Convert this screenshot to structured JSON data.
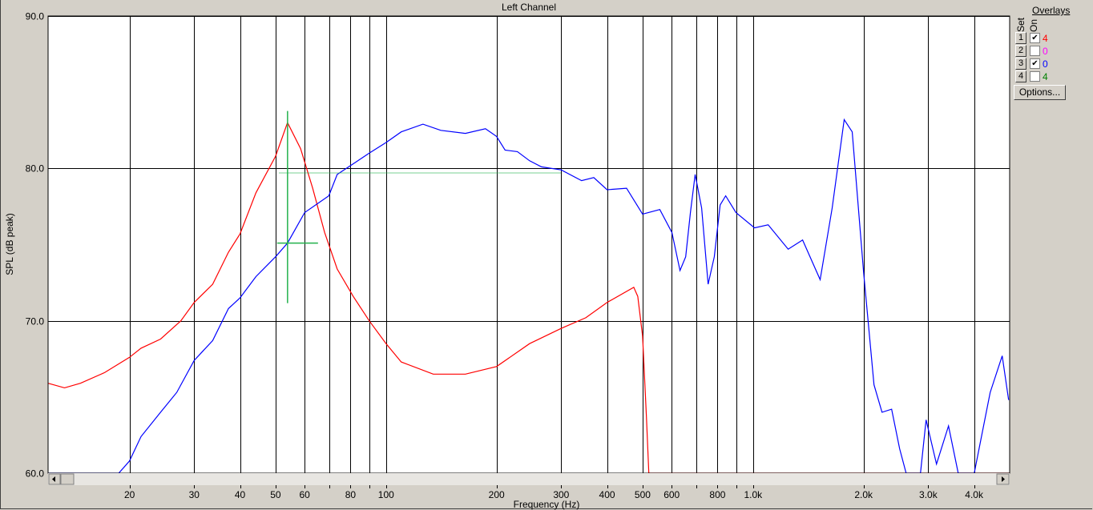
{
  "chart_data": {
    "type": "line",
    "title": "Left Channel",
    "xlabel": "Frequency (Hz)",
    "ylabel": "SPL (dB peak)",
    "xscale": "log",
    "xlim": [
      12,
      5000
    ],
    "ylim": [
      60,
      90
    ],
    "grid": true,
    "yticks": [
      {
        "v": 90,
        "label": "90.0"
      },
      {
        "v": 80,
        "label": "80.0"
      },
      {
        "v": 70,
        "label": "70.0"
      },
      {
        "v": 60,
        "label": "60.0"
      }
    ],
    "xgrid": [
      20,
      30,
      40,
      50,
      60,
      70,
      80,
      90,
      100,
      200,
      300,
      400,
      500,
      600,
      700,
      800,
      900,
      1000,
      2000,
      3000,
      4000
    ],
    "xticks": [
      {
        "v": 20,
        "label": "20"
      },
      {
        "v": 30,
        "label": "30"
      },
      {
        "v": 40,
        "label": "40"
      },
      {
        "v": 50,
        "label": "50"
      },
      {
        "v": 60,
        "label": "60"
      },
      {
        "v": 80,
        "label": "80"
      },
      {
        "v": 100,
        "label": "100"
      },
      {
        "v": 200,
        "label": "200"
      },
      {
        "v": 300,
        "label": "300"
      },
      {
        "v": 400,
        "label": "400"
      },
      {
        "v": 500,
        "label": "500"
      },
      {
        "v": 600,
        "label": "600"
      },
      {
        "v": 800,
        "label": "800"
      },
      {
        "v": 1000,
        "label": "1.0k"
      },
      {
        "v": 2000,
        "label": "2.0k"
      },
      {
        "v": 3000,
        "label": "3.0k"
      },
      {
        "v": 4000,
        "label": "4.0k"
      }
    ],
    "cursor": {
      "freq": 53.9,
      "spl": 75.1,
      "color": "#22b14c",
      "reference_spl": 79.7
    },
    "series": [
      {
        "color": "#ff0000",
        "x": [
          12,
          13.3,
          14.7,
          17.1,
          20,
          21.5,
          24.3,
          27.6,
          30,
          33.7,
          37.2,
          40,
          44.2,
          50,
          53.9,
          58.5,
          63.1,
          68,
          73.6,
          81.4,
          90,
          100,
          110,
          134.5,
          164.5,
          200,
          246,
          300,
          350,
          400,
          473,
          485,
          500,
          512,
          520,
          5000
        ],
        "y": [
          65.9,
          65.6,
          65.9,
          66.6,
          67.6,
          68.2,
          68.8,
          70.0,
          71.2,
          72.4,
          74.5,
          75.7,
          78.4,
          80.8,
          83.0,
          81.3,
          78.7,
          75.8,
          73.4,
          71.6,
          70.0,
          68.5,
          67.3,
          66.5,
          66.5,
          67.0,
          68.5,
          69.5,
          70.2,
          71.2,
          72.2,
          71.6,
          69.0,
          63.7,
          60,
          60
        ]
      },
      {
        "color": "#0000ff",
        "x": [
          12,
          18.7,
          20,
          21.5,
          24.3,
          26.9,
          30,
          33.7,
          37.2,
          40,
          44.2,
          50,
          53.9,
          60,
          69.8,
          73.6,
          81.4,
          90,
          100,
          110,
          126,
          141,
          164.5,
          186.5,
          200,
          211,
          228,
          246,
          265,
          300,
          341,
          368,
          400,
          452,
          500,
          557,
          601,
          632,
          655,
          675,
          695,
          724,
          754,
          784,
          813,
          842,
          898,
          1009,
          1099,
          1246,
          1364,
          1523,
          1642,
          1771,
          1862,
          2000,
          2135,
          2245,
          2385,
          2507,
          2611,
          2858,
          2960,
          3160,
          3407,
          3620,
          4003,
          4426,
          4772,
          4967
        ],
        "y": [
          60,
          60,
          60.8,
          62.4,
          64.0,
          65.3,
          67.4,
          68.7,
          70.8,
          71.5,
          72.9,
          74.2,
          75.1,
          77.1,
          78.2,
          79.6,
          80.3,
          81.0,
          81.7,
          82.4,
          82.9,
          82.5,
          82.3,
          82.6,
          82.1,
          81.2,
          81.1,
          80.5,
          80.1,
          79.9,
          79.2,
          79.4,
          78.6,
          78.7,
          77.0,
          77.3,
          75.8,
          73.3,
          74.2,
          77.1,
          79.6,
          77.4,
          72.4,
          74.2,
          77.6,
          78.2,
          77.1,
          76.1,
          76.3,
          74.7,
          75.3,
          72.7,
          77.4,
          83.2,
          82.4,
          73.2,
          65.8,
          64.0,
          64.2,
          61.6,
          60,
          60,
          63.5,
          60.6,
          63.1,
          60,
          60,
          65.3,
          67.7,
          64.8
        ]
      }
    ]
  },
  "overlays": {
    "title": "Overlays",
    "set_header": "Set",
    "on_header": "On",
    "rows": [
      {
        "set": "1",
        "on": true,
        "count": "4",
        "color": "#ff0000"
      },
      {
        "set": "2",
        "on": false,
        "count": "0",
        "color": "#ff00ff"
      },
      {
        "set": "3",
        "on": true,
        "count": "0",
        "color": "#0000ff"
      },
      {
        "set": "4",
        "on": false,
        "count": "4",
        "color": "#008000"
      }
    ],
    "options_label": "Options..."
  },
  "check_mark": "✔"
}
